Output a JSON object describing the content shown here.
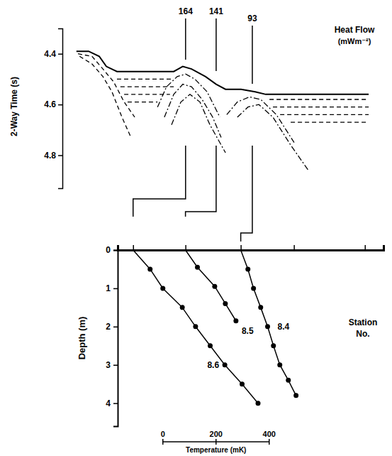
{
  "chart_data": [
    {
      "type": "line",
      "ylabel": "2-Way Time (s)",
      "heat_flow_title": "Heat Flow",
      "heat_flow_unit": "(mWm⁻²)",
      "xlim": [
        0,
        100
      ],
      "ylim": [
        4.3,
        4.93
      ],
      "yticks": [
        4.4,
        4.6,
        4.8
      ],
      "tick_labels": "y",
      "heat_flow": {
        "x": [
          39.5,
          49.3,
          60.9
        ],
        "values": [
          164,
          141,
          93
        ]
      },
      "series": [
        {
          "line_style": "solid",
          "x": [
            4.5,
            8.4,
            11.8,
            14.1,
            17.5,
            25.5,
            35.7,
            38.6,
            41.4,
            45.9,
            49.3,
            52.3,
            57.3,
            61.8,
            65.2,
            98.2
          ],
          "values": [
            4.39,
            4.39,
            4.41,
            4.45,
            4.47,
            4.47,
            4.47,
            4.45,
            4.46,
            4.49,
            4.52,
            4.54,
            4.54,
            4.55,
            4.56,
            4.56
          ]
        },
        {
          "line_style": "dashed",
          "x": [
            5,
            9.5,
            13,
            16.4,
            19.8,
            23.2
          ],
          "values": [
            4.4,
            4.41,
            4.46,
            4.51,
            4.59,
            4.65
          ]
        },
        {
          "line_style": "dashed",
          "x": [
            5.5,
            9.5,
            13,
            15.9,
            19.1,
            22
          ],
          "values": [
            4.41,
            4.44,
            4.49,
            4.55,
            4.65,
            4.73
          ]
        },
        {
          "line_style": "dashed",
          "x": [
            17.5,
            35.7
          ],
          "values": [
            4.5,
            4.5
          ]
        },
        {
          "line_style": "dashed",
          "x": [
            18.6,
            35.7
          ],
          "values": [
            4.53,
            4.53
          ]
        },
        {
          "line_style": "dashed",
          "x": [
            19.8,
            34.5
          ],
          "values": [
            4.56,
            4.56
          ]
        },
        {
          "line_style": "dashed",
          "x": [
            20.9,
            30.5
          ],
          "values": [
            4.59,
            4.59
          ]
        },
        {
          "line_style": "dashdot",
          "x": [
            30.5,
            33.4,
            36.8,
            39.5,
            42.5,
            46.4,
            50.5
          ],
          "values": [
            4.61,
            4.53,
            4.49,
            4.48,
            4.5,
            4.55,
            4.65
          ]
        },
        {
          "line_style": "dashdot",
          "x": [
            32.7,
            35.7,
            38.6,
            41.4,
            44.8,
            48.2,
            50.9
          ],
          "values": [
            4.65,
            4.56,
            4.52,
            4.53,
            4.58,
            4.65,
            4.73
          ]
        },
        {
          "line_style": "dashdot",
          "x": [
            35,
            38,
            40.9,
            44.1,
            47.3,
            52.3
          ],
          "values": [
            4.68,
            4.59,
            4.56,
            4.59,
            4.68,
            4.79
          ]
        },
        {
          "line_style": "dashdot",
          "x": [
            52.7,
            56.1,
            60,
            63.6,
            68.6,
            74.3
          ],
          "values": [
            4.64,
            4.59,
            4.57,
            4.58,
            4.64,
            4.75
          ]
        },
        {
          "line_style": "dashdot",
          "x": [
            56.1,
            59.5,
            63,
            67.5,
            73.2,
            78.9
          ],
          "values": [
            4.65,
            4.61,
            4.6,
            4.65,
            4.76,
            4.86
          ]
        },
        {
          "line_style": "dashed",
          "x": [
            66.4,
            98.2
          ],
          "values": [
            4.58,
            4.58
          ]
        },
        {
          "line_style": "dashed",
          "x": [
            67.5,
            98.2
          ],
          "values": [
            4.61,
            4.61
          ]
        },
        {
          "line_style": "dashed",
          "x": [
            69.8,
            98.2
          ],
          "values": [
            4.64,
            4.64
          ]
        },
        {
          "line_style": "dashed",
          "x": [
            73.2,
            98.2
          ],
          "values": [
            4.67,
            4.67
          ]
        }
      ]
    },
    {
      "type": "line",
      "ylabel": "Depth (m)",
      "series_title": "Station No.",
      "xlim": [
        -170,
        830
      ],
      "xticks": [
        -112,
        85,
        293,
        493,
        760
      ],
      "ylim": [
        0,
        4.6
      ],
      "yticks": [
        0,
        1,
        2,
        3,
        4
      ],
      "tick_labels": "y",
      "marker": "circle",
      "color": "#000000",
      "scale_bar": {
        "label": "Temperature (mK)",
        "ticks": [
          0,
          200,
          400
        ]
      },
      "series": [
        {
          "name": "8.6",
          "x": [
            -112,
            -48,
            0,
            73,
            123,
            178,
            233,
            298,
            358
          ],
          "values": [
            0,
            0.5,
            1,
            1.5,
            2,
            2.5,
            3,
            3.5,
            4
          ]
        },
        {
          "name": "8.5",
          "x": [
            85,
            130,
            195,
            235,
            275
          ],
          "values": [
            0,
            0.45,
            0.95,
            1.4,
            1.85
          ]
        },
        {
          "name": "8.4",
          "x": [
            293,
            320,
            341,
            368,
            394,
            416,
            440,
            472,
            501
          ],
          "values": [
            0,
            0.5,
            1,
            1.5,
            2,
            2.5,
            3,
            3.4,
            3.8
          ]
        }
      ]
    }
  ]
}
